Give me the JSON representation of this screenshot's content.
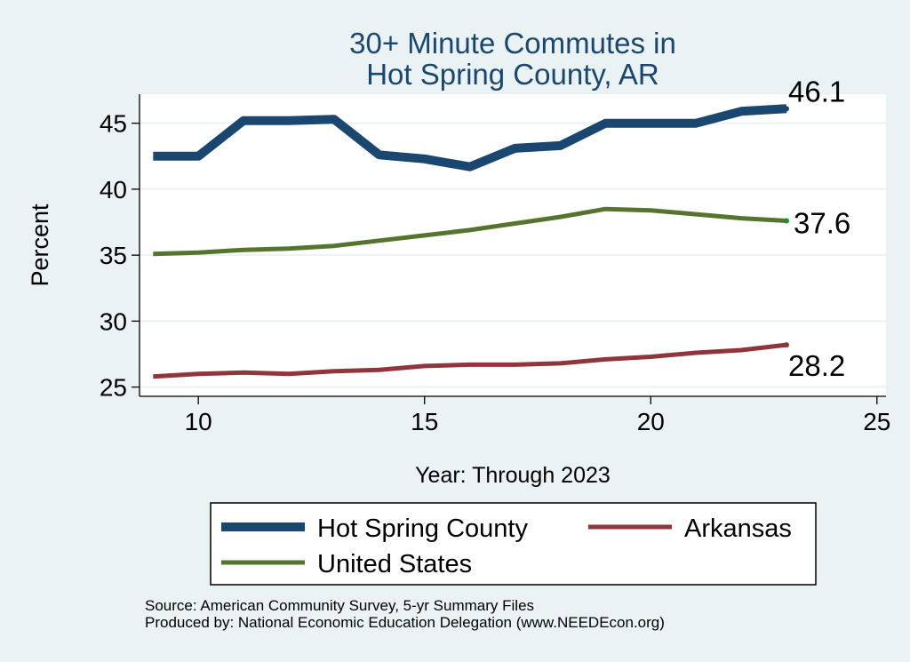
{
  "chart_data": {
    "type": "line",
    "title_lines": [
      "30+ Minute Commutes in",
      "Hot Spring County, AR"
    ],
    "xlabel": "Year: Through 2023",
    "ylabel": "Percent",
    "xlim": [
      8.7,
      25.2
    ],
    "ylim": [
      24.3,
      47.2
    ],
    "xticks": [
      10,
      15,
      20,
      25
    ],
    "yticks": [
      25,
      30,
      35,
      40,
      45
    ],
    "grid": true,
    "legend_position": "bottom",
    "series": [
      {
        "name": "Hot Spring County",
        "color": "#1a476f",
        "width": 10,
        "x": [
          9,
          10,
          11,
          12,
          13,
          14,
          15,
          16,
          17,
          18,
          19,
          20,
          21,
          22,
          23
        ],
        "y": [
          42.5,
          42.5,
          45.2,
          45.2,
          45.3,
          42.6,
          42.3,
          41.7,
          43.1,
          43.3,
          45.0,
          45.0,
          45.0,
          45.9,
          46.1
        ],
        "end_label": "46.1",
        "end_label_position": "above"
      },
      {
        "name": "United States",
        "color": "#55752f",
        "width": 5,
        "x": [
          9,
          10,
          11,
          12,
          13,
          14,
          15,
          16,
          17,
          18,
          19,
          20,
          21,
          22,
          23
        ],
        "y": [
          35.1,
          35.2,
          35.4,
          35.5,
          35.7,
          36.1,
          36.5,
          36.9,
          37.4,
          37.9,
          38.5,
          38.4,
          38.1,
          37.8,
          37.6
        ],
        "end_label": "37.6",
        "end_label_position": "right"
      },
      {
        "name": "Arkansas",
        "color": "#90353b",
        "width": 5,
        "x": [
          9,
          10,
          11,
          12,
          13,
          14,
          15,
          16,
          17,
          18,
          19,
          20,
          21,
          22,
          23
        ],
        "y": [
          25.8,
          26.0,
          26.1,
          26.0,
          26.2,
          26.3,
          26.6,
          26.7,
          26.7,
          26.8,
          27.1,
          27.3,
          27.6,
          27.8,
          28.2
        ],
        "end_label": "28.2",
        "end_label_position": "below"
      }
    ],
    "legend_order": [
      "Hot Spring County",
      "Arkansas",
      "United States"
    ]
  },
  "notes": {
    "source": "Source: American Community Survey, 5-yr Summary Files",
    "produced_by": "Produced by: National Economic Education Delegation (www.NEEDEcon.org)"
  },
  "colors": {
    "background": "#eaf2f3",
    "plot_background": "#ffffff",
    "grid": "#eaf2f3",
    "title": "#1a476f"
  }
}
